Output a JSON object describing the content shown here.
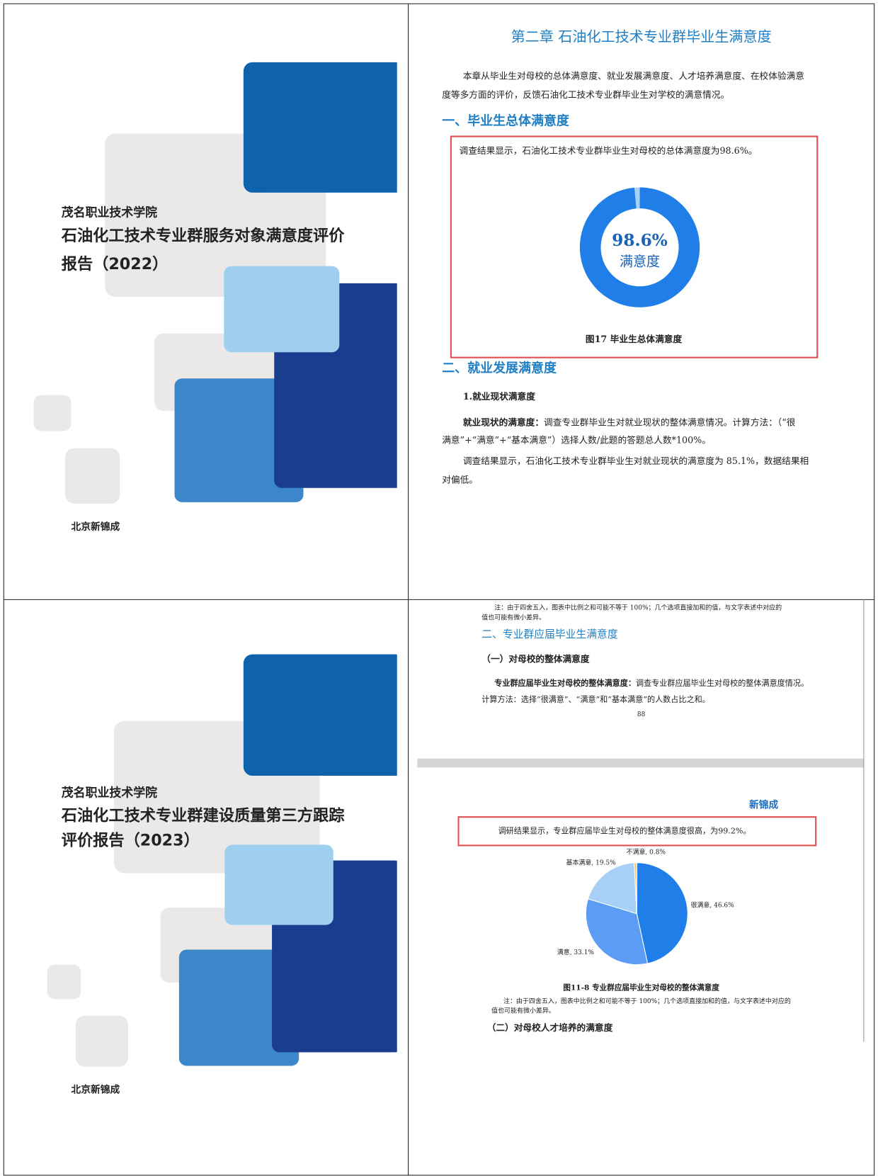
{
  "cover_2022": {
    "institution": "茂名职业技术学院",
    "title_lines": [
      "石油化工技术专业群服务对象满意度评价",
      "报告（2022）"
    ],
    "publisher": "北京新锦成"
  },
  "page_2022": {
    "chapter_title": "第二章 石油化工技术专业群毕业生满意度",
    "intro": [
      "本章从毕业生对母校的总体满意度、就业发展满意度、人才培养满意度、在校体验满意",
      "度等多方面的评价，反馈石油化工技术专业群毕业生对学校的满意情况。"
    ],
    "section_1": "一、毕业生总体满意度",
    "finding": "调查结果显示，石油化工技术专业群毕业生对母校的总体满意度为98.6%。",
    "donut": {
      "type": "donut",
      "values": [
        98.6
      ],
      "value_labels": [
        "98.6%"
      ],
      "caption": "满意度",
      "color": "#1f7ee8",
      "rest_color": "#a8d0f7"
    },
    "figure_caption": "图17 毕业生总体满意度",
    "section_2": "二、就业发展满意度",
    "subsection": "1.就业现状满意度",
    "para_term": "就业现状的满意度：",
    "para_lines": [
      "调查专业群毕业生对就业现状的整体满意情况。计算方法：（“很",
      "满意”+“满意”+“基本满意”）选择人数/此题的答题总人数*100%。"
    ],
    "result_lines": [
      "调查结果显示，石油化工技术专业群毕业生对就业现状的满意度为 85.1%，数据结果相",
      "对偏低。"
    ]
  },
  "cover_2023": {
    "institution": "茂名职业技术学院",
    "title_lines": [
      "石油化工技术专业群建设质量第三方跟踪",
      "评价报告（2023）"
    ],
    "publisher": "北京新锦成"
  },
  "page_2023": {
    "note_top": [
      "注：由于四舍五入，图表中比例之和可能不等于 100%；几个选项直接加和的值，与文字表述中对应的",
      "值也可能有微小差异。"
    ],
    "section": "二、专业群应届毕业生满意度",
    "subsection_1": "（一）对母校的整体满意度",
    "para_term": "专业群应届毕业生对母校的整体满意度：",
    "para_rest": "调查专业群应届毕业生对母校的整体满意度情况。",
    "para_line_2": "计算方法：选择“很满意”、“满意”和“基本满意”的人数占比之和。",
    "page_number": "88",
    "logo": "新锦成",
    "finding": "调研结果显示，专业群应届毕业生对母校的整体满意度很高，为99.2%。",
    "pie": {
      "type": "pie",
      "values": [
        46.6,
        33.1,
        19.5,
        0.8
      ],
      "value_labels": [
        "很满意, 46.6%",
        "满意, 33.1%",
        "基本满意, 19.5%",
        "不满意, 0.8%"
      ],
      "colors": [
        "#1f7ee8",
        "#5b9cf5",
        "#a8d0f7",
        "#f2c46d"
      ]
    },
    "figure_caption": "图11-8  专业群应届毕业生对母校的整体满意度",
    "note_bottom": [
      "注：由于四舍五入，图表中比例之和可能不等于 100%；几个选项直接加和的值，与文字表述中对应的",
      "值也可能有微小差异。"
    ],
    "subsection_2": "（二）对母校人才培养的满意度"
  }
}
